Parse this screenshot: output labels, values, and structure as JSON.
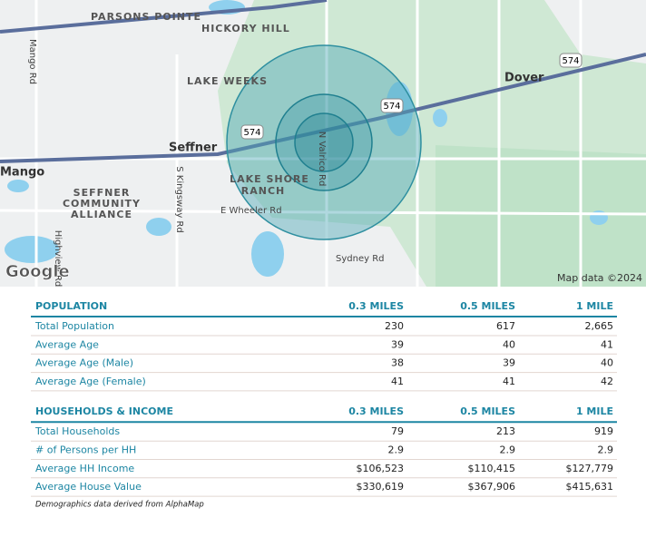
{
  "map": {
    "labels": [
      "PARSONS POINTE",
      "HICKORY HILL",
      "Mango Rd",
      "LAKE WEEKS",
      "Dover",
      "Seffner",
      "Mango",
      "S Kingsway Rd",
      "N Valrico Rd",
      "E Wheeler Rd",
      "Highview Rd",
      "Sydney Rd"
    ],
    "multiline": [
      [
        "SEFFNER",
        "COMMUNITY",
        "ALLIANCE"
      ],
      [
        "LAKE SHORE",
        "RANCH"
      ]
    ],
    "shields": [
      "574",
      "574",
      "574"
    ],
    "logo": "Google",
    "attribution": "Map data ©2024"
  },
  "table": {
    "sections": [
      {
        "header": [
          "POPULATION",
          "0.3 MILES",
          "0.5 MILES",
          "1 MILE"
        ],
        "rows": [
          [
            "Total Population",
            "230",
            "617",
            "2,665"
          ],
          [
            "Average Age",
            "39",
            "40",
            "41"
          ],
          [
            "Average Age (Male)",
            "38",
            "39",
            "40"
          ],
          [
            "Average Age (Female)",
            "41",
            "41",
            "42"
          ]
        ]
      },
      {
        "header": [
          "HOUSEHOLDS & INCOME",
          "0.3 MILES",
          "0.5 MILES",
          "1 MILE"
        ],
        "rows": [
          [
            "Total Households",
            "79",
            "213",
            "919"
          ],
          [
            "# of Persons per HH",
            "2.9",
            "2.9",
            "2.9"
          ],
          [
            "Average HH Income",
            "$106,523",
            "$110,415",
            "$127,779"
          ],
          [
            "Average House Value",
            "$330,619",
            "$367,906",
            "$415,631"
          ]
        ]
      }
    ],
    "footnote": "Demographics data derived from AlphaMap"
  }
}
